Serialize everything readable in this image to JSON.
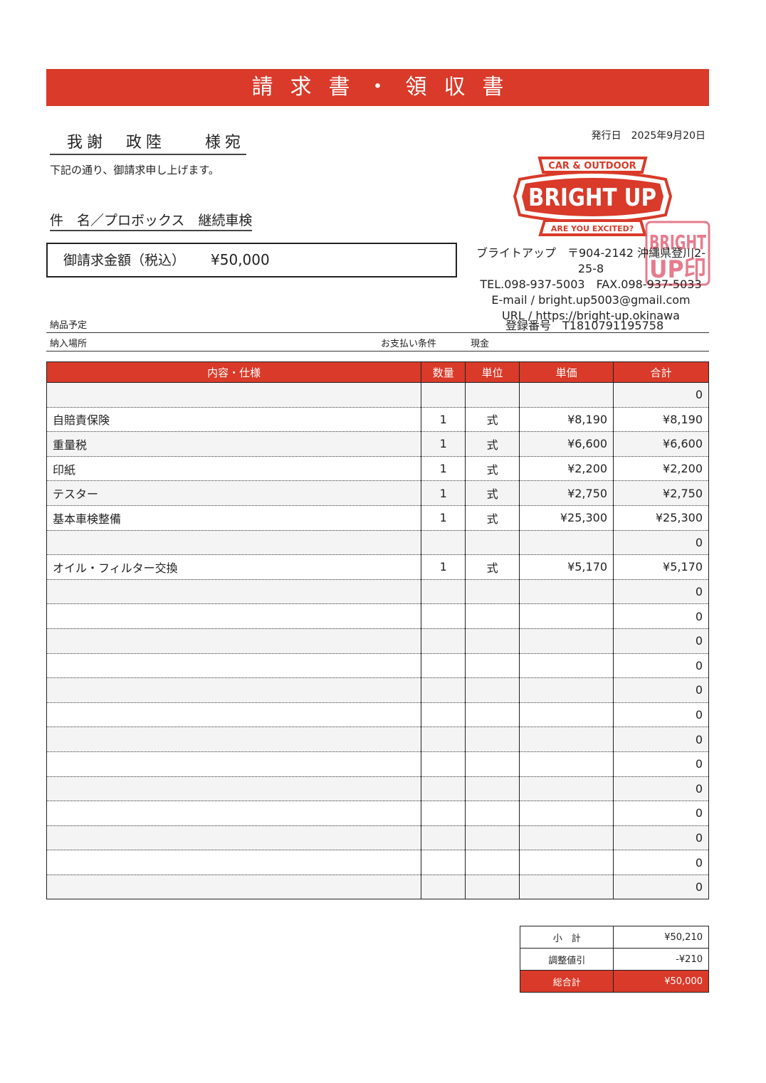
{
  "title": "請求書・領収書",
  "recipient": "我謝 政陸　 様宛",
  "intro": "下記の通り、御請求申し上げます。",
  "subject": "件　名／プロボックス　継続車検",
  "amount": {
    "label": "御請求金額（税込）",
    "value": "¥50,000"
  },
  "issue": {
    "label": "発行日",
    "date": "2025年9月20日"
  },
  "logo": {
    "top": "CAR & OUTDOOR",
    "main": "BRIGHT UP",
    "bottom": "ARE YOU EXCITED?",
    "stamp": "BRIGHT UP印",
    "color": "#d93a29"
  },
  "company": {
    "line1": "ブライトアップ　〒904-2142 沖縄県登川2-25-8",
    "tel": "TEL.098-937-5003　FAX.098-937-5033",
    "email": "E-mail / bright.up5003@gmail.com",
    "url": "URL / https://bright-up.okinawa"
  },
  "registration": {
    "label": "登録番号",
    "value": "T1810791195758"
  },
  "delivery_date_label": "納品予定",
  "delivery_place_label": "納入場所",
  "payment": {
    "label": "お支払い条件",
    "value": "現金"
  },
  "table": {
    "headers": [
      "内容・仕様",
      "数量",
      "単位",
      "単価",
      "合計"
    ],
    "rows": [
      [
        "",
        "",
        "",
        "",
        "0"
      ],
      [
        "自賠責保険",
        "1",
        "式",
        "¥8,190",
        "¥8,190"
      ],
      [
        "重量税",
        "1",
        "式",
        "¥6,600",
        "¥6,600"
      ],
      [
        "印紙",
        "1",
        "式",
        "¥2,200",
        "¥2,200"
      ],
      [
        "テスター",
        "1",
        "式",
        "¥2,750",
        "¥2,750"
      ],
      [
        "基本車検整備",
        "1",
        "式",
        "¥25,300",
        "¥25,300"
      ],
      [
        "",
        "",
        "",
        "",
        "0"
      ],
      [
        "オイル・フィルター交換",
        "1",
        "式",
        "¥5,170",
        "¥5,170"
      ],
      [
        "",
        "",
        "",
        "",
        "0"
      ],
      [
        "",
        "",
        "",
        "",
        "0"
      ],
      [
        "",
        "",
        "",
        "",
        "0"
      ],
      [
        "",
        "",
        "",
        "",
        "0"
      ],
      [
        "",
        "",
        "",
        "",
        "0"
      ],
      [
        "",
        "",
        "",
        "",
        "0"
      ],
      [
        "",
        "",
        "",
        "",
        "0"
      ],
      [
        "",
        "",
        "",
        "",
        "0"
      ],
      [
        "",
        "",
        "",
        "",
        "0"
      ],
      [
        "",
        "",
        "",
        "",
        "0"
      ],
      [
        "",
        "",
        "",
        "",
        "0"
      ],
      [
        "",
        "",
        "",
        "",
        "0"
      ],
      [
        "",
        "",
        "",
        "",
        "0"
      ]
    ]
  },
  "totals": {
    "subtotal_label": "小　計",
    "subtotal": "¥50,210",
    "discount_label": "調整値引",
    "discount": "-¥210",
    "grand_label": "総合計",
    "grand": "¥50,000"
  }
}
